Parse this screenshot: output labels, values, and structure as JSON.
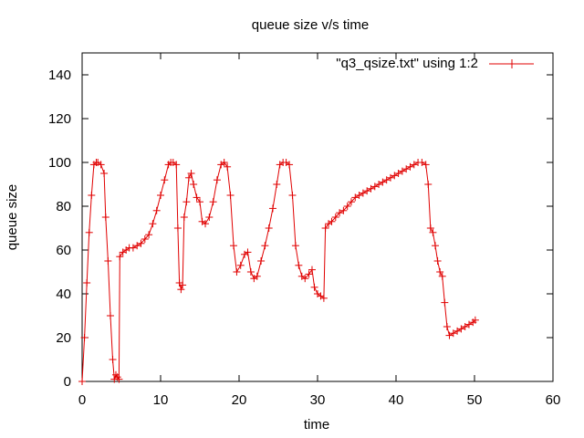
{
  "chart_data": {
    "type": "line",
    "title": "queue size v/s time",
    "xlabel": "time",
    "ylabel": "queue size",
    "xlim": [
      0,
      60
    ],
    "ylim": [
      0,
      150
    ],
    "xticks": [
      0,
      10,
      20,
      30,
      40,
      50,
      60
    ],
    "yticks": [
      0,
      20,
      40,
      60,
      80,
      100,
      120,
      140
    ],
    "grid": false,
    "legend_position": "top-right",
    "series": [
      {
        "name": "\"q3_qsize.txt\" using 1:2",
        "color": "#e00000",
        "marker": "plus",
        "x": [
          0,
          0.3,
          0.6,
          0.9,
          1.2,
          1.5,
          1.8,
          2.0,
          2.4,
          2.8,
          3.0,
          3.3,
          3.6,
          3.9,
          4.1,
          4.3,
          4.5,
          4.7,
          4.8,
          5.2,
          5.6,
          6.0,
          6.5,
          7.0,
          7.5,
          8.0,
          8.5,
          9.0,
          9.5,
          10.0,
          10.5,
          11.0,
          11.3,
          11.6,
          12.0,
          12.2,
          12.4,
          12.6,
          12.8,
          13.0,
          13.3,
          13.6,
          13.9,
          14.2,
          14.6,
          15.0,
          15.3,
          15.7,
          16.2,
          16.7,
          17.2,
          17.7,
          18.1,
          18.5,
          18.9,
          19.3,
          19.7,
          20.2,
          20.7,
          21.1,
          21.5,
          21.9,
          22.3,
          22.8,
          23.3,
          23.8,
          24.3,
          24.8,
          25.2,
          25.6,
          26.0,
          26.4,
          26.8,
          27.2,
          27.6,
          28.0,
          28.4,
          28.9,
          29.3,
          29.6,
          30.0,
          30.4,
          30.8,
          31.0,
          31.4,
          31.8,
          32.3,
          32.8,
          33.3,
          33.8,
          34.3,
          34.8,
          35.3,
          35.8,
          36.3,
          36.8,
          37.3,
          37.8,
          38.3,
          38.8,
          39.3,
          39.8,
          40.3,
          40.8,
          41.3,
          41.8,
          42.3,
          42.8,
          43.3,
          43.8,
          44.1,
          44.4,
          44.7,
          45.0,
          45.3,
          45.6,
          45.9,
          46.2,
          46.5,
          46.8,
          47.3,
          47.8,
          48.3,
          48.8,
          49.3,
          49.8,
          50.1
        ],
        "y": [
          0,
          20,
          45,
          68,
          85,
          99,
          100,
          100,
          99,
          95,
          75,
          55,
          30,
          10,
          1,
          3,
          2,
          1,
          57,
          59,
          60,
          61,
          61,
          62,
          63,
          65,
          67,
          72,
          78,
          85,
          92,
          99,
          100,
          100,
          99,
          70,
          45,
          42,
          44,
          75,
          82,
          93,
          95,
          90,
          84,
          82,
          73,
          72,
          75,
          82,
          92,
          99,
          100,
          98,
          85,
          62,
          50,
          53,
          58,
          59,
          50,
          47,
          48,
          55,
          62,
          70,
          79,
          90,
          99,
          100,
          100,
          99,
          85,
          62,
          53,
          48,
          47,
          49,
          51,
          43,
          40,
          39,
          38,
          70,
          72,
          73,
          75,
          77,
          78,
          80,
          82,
          84,
          85,
          86,
          87,
          88,
          89,
          90,
          91,
          92,
          93,
          94,
          95,
          96,
          97,
          98,
          99,
          100,
          100,
          99,
          90,
          70,
          68,
          62,
          55,
          50,
          48,
          36,
          25,
          21,
          22,
          23,
          24,
          25,
          26,
          27,
          28
        ]
      }
    ]
  }
}
